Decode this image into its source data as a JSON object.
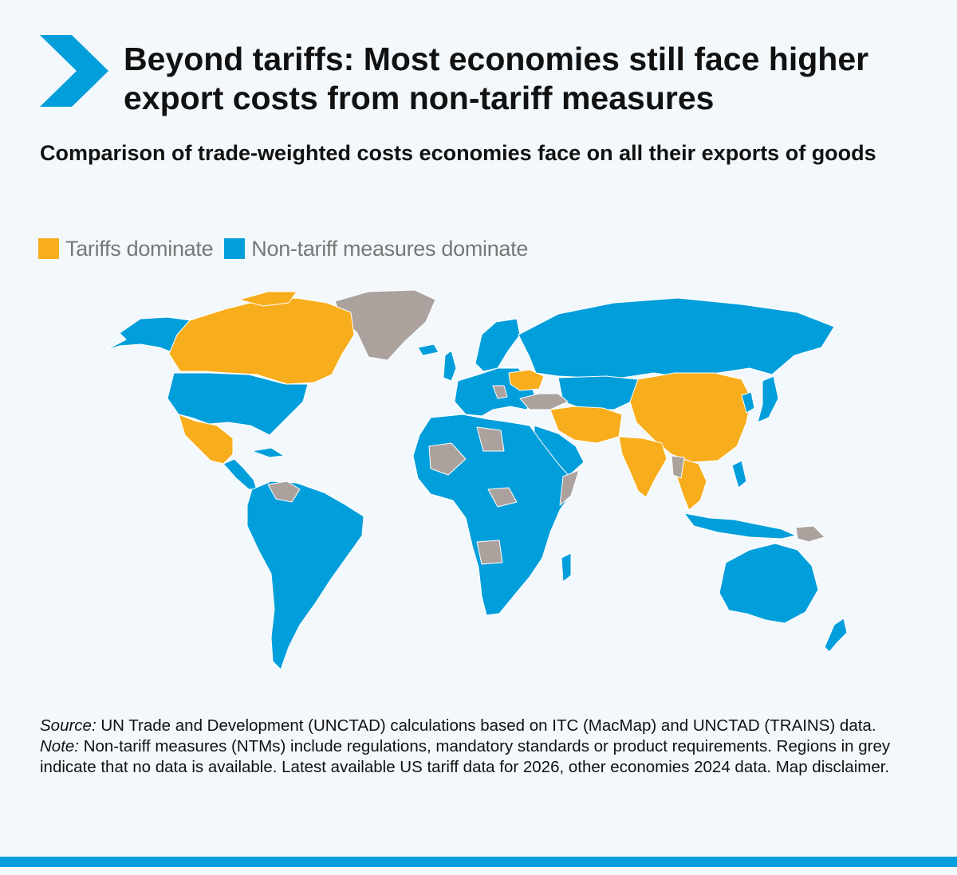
{
  "header": {
    "title": "Beyond tariffs: Most economies still face higher export costs from non-tariff measures",
    "subtitle": "Comparison of trade-weighted costs economies face on all their exports of goods"
  },
  "legend": {
    "items": [
      {
        "label": "Tariffs dominate",
        "color": "#f7ad1c"
      },
      {
        "label": "Non-tariff measures dominate",
        "color": "#009edb"
      }
    ]
  },
  "colors": {
    "tariffs": "#f7ad1c",
    "ntm": "#009edb",
    "no_data": "#aba19d",
    "background": "#f3f8fc",
    "accent": "#009edb"
  },
  "footer": {
    "source_label": "Source:",
    "source_text": " UN Trade and Development (UNCTAD) calculations based on ITC (MacMap) and UNCTAD (TRAINS) data.",
    "note_label": "Note:",
    "note_text": " Non-tariff measures (NTMs) include regulations, mandatory standards or product requirements. Regions in grey indicate that no data is available. Latest available US tariff data for 2026, other economies 2024 data. Map disclaimer."
  }
}
